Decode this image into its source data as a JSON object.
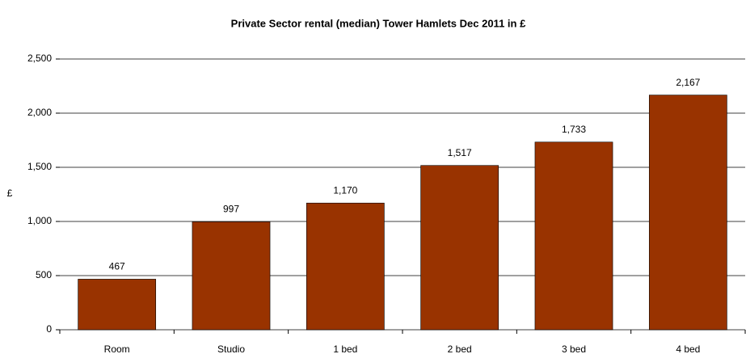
{
  "chart_data": {
    "type": "bar",
    "title": "Private Sector rental (median) Tower Hamlets Dec 2011 in £",
    "y_label": "£",
    "categories": [
      "Room",
      "Studio",
      "1 bed",
      "2 bed",
      "3 bed",
      "4 bed"
    ],
    "values": [
      467,
      997,
      1170,
      1517,
      1733,
      2167
    ],
    "value_labels": [
      "467",
      "997",
      "1,170",
      "1,517",
      "1,733",
      "2,167"
    ],
    "color": "#993300",
    "ylim": [
      0,
      2500
    ],
    "yticks": [
      0,
      500,
      {
        "value": 1000,
        "label": "1,000"
      },
      {
        "value": 1500,
        "label": "1,500"
      },
      {
        "value": 2000,
        "label": "2,000"
      },
      {
        "value": 2500,
        "label": "2,500"
      }
    ],
    "grid": true
  }
}
